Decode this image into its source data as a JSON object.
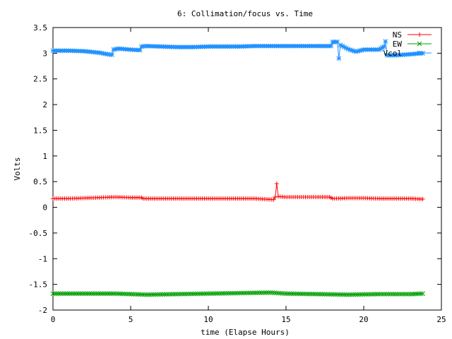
{
  "chart_data": {
    "type": "line",
    "title": "6: Collimation/focus vs. Time",
    "xlabel": "time (Elapse Hours)",
    "ylabel": "Volts",
    "xlim": [
      0,
      25
    ],
    "ylim": [
      -2,
      3.5
    ],
    "x_ticks": [
      0,
      5,
      10,
      15,
      20,
      25
    ],
    "x_tick_labels": [
      "0",
      "5",
      "10",
      "15",
      "20",
      "25"
    ],
    "y_ticks": [
      -2,
      -1.5,
      -1,
      -0.5,
      0,
      0.5,
      1,
      1.5,
      2,
      2.5,
      3,
      3.5
    ],
    "y_tick_labels": [
      "-2",
      "-1.5",
      "-1",
      "-0.5",
      "0",
      "0.5",
      "1",
      "1.5",
      "2",
      "2.5",
      "3",
      "3.5"
    ],
    "grid": false,
    "legend_position": "top-right",
    "series": [
      {
        "name": "NS",
        "color": "#ff0000",
        "marker": "plus",
        "points": [
          [
            0,
            0.17
          ],
          [
            1,
            0.17
          ],
          [
            2,
            0.18
          ],
          [
            3,
            0.19
          ],
          [
            4,
            0.2
          ],
          [
            5,
            0.19
          ],
          [
            5.7,
            0.19
          ],
          [
            5.8,
            0.17
          ],
          [
            7,
            0.17
          ],
          [
            8,
            0.17
          ],
          [
            9,
            0.17
          ],
          [
            10,
            0.17
          ],
          [
            11,
            0.17
          ],
          [
            12,
            0.17
          ],
          [
            13,
            0.17
          ],
          [
            13.6,
            0.16
          ],
          [
            14.2,
            0.15
          ],
          [
            14.3,
            0.2
          ],
          [
            14.4,
            0.46
          ],
          [
            14.5,
            0.21
          ],
          [
            15,
            0.2
          ],
          [
            16,
            0.2
          ],
          [
            17,
            0.2
          ],
          [
            17.8,
            0.2
          ],
          [
            18,
            0.17
          ],
          [
            19,
            0.18
          ],
          [
            20,
            0.18
          ],
          [
            21,
            0.17
          ],
          [
            22,
            0.17
          ],
          [
            23,
            0.17
          ],
          [
            23.8,
            0.16
          ]
        ]
      },
      {
        "name": "EW",
        "color": "#00a000",
        "marker": "cross",
        "points": [
          [
            0,
            -1.68
          ],
          [
            2,
            -1.68
          ],
          [
            4,
            -1.68
          ],
          [
            6,
            -1.7
          ],
          [
            8,
            -1.69
          ],
          [
            10,
            -1.68
          ],
          [
            12,
            -1.67
          ],
          [
            14,
            -1.66
          ],
          [
            15,
            -1.68
          ],
          [
            17,
            -1.69
          ],
          [
            19,
            -1.7
          ],
          [
            21,
            -1.69
          ],
          [
            23,
            -1.69
          ],
          [
            23.8,
            -1.68
          ]
        ]
      },
      {
        "name": "Vcol",
        "color": "#1e90ff",
        "marker": "star",
        "points": [
          [
            0,
            3.05
          ],
          [
            1,
            3.05
          ],
          [
            2,
            3.04
          ],
          [
            3,
            3.01
          ],
          [
            3.5,
            2.98
          ],
          [
            3.8,
            2.97
          ],
          [
            3.9,
            3.07
          ],
          [
            4.2,
            3.09
          ],
          [
            5,
            3.07
          ],
          [
            5.6,
            3.06
          ],
          [
            5.7,
            3.13
          ],
          [
            6,
            3.14
          ],
          [
            7,
            3.13
          ],
          [
            8,
            3.12
          ],
          [
            9,
            3.12
          ],
          [
            10,
            3.13
          ],
          [
            11,
            3.13
          ],
          [
            12,
            3.13
          ],
          [
            13,
            3.14
          ],
          [
            14,
            3.14
          ],
          [
            15,
            3.14
          ],
          [
            16,
            3.14
          ],
          [
            17,
            3.14
          ],
          [
            17.9,
            3.14
          ],
          [
            18,
            3.22
          ],
          [
            18.3,
            3.22
          ],
          [
            18.4,
            2.9
          ],
          [
            18.5,
            3.16
          ],
          [
            19,
            3.08
          ],
          [
            19.5,
            3.03
          ],
          [
            20,
            3.07
          ],
          [
            21,
            3.07
          ],
          [
            21.3,
            3.13
          ],
          [
            21.4,
            3.23
          ],
          [
            21.5,
            2.96
          ],
          [
            22,
            2.96
          ],
          [
            23,
            2.98
          ],
          [
            23.8,
            3.0
          ]
        ]
      }
    ]
  }
}
